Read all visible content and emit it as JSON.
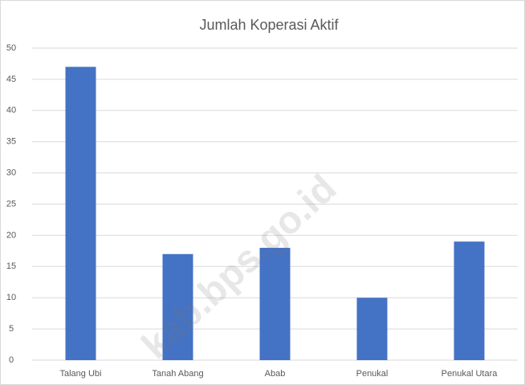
{
  "chart_data": {
    "type": "bar",
    "title": "Jumlah Koperasi Aktif",
    "categories": [
      "Talang Ubi",
      "Tanah Abang",
      "Abab",
      "Penukal",
      "Penukal Utara"
    ],
    "values": [
      47,
      17,
      18,
      10,
      19
    ],
    "color": "#4472c4",
    "ylim": [
      0,
      50
    ],
    "yticks": [
      0,
      5,
      10,
      15,
      20,
      25,
      30,
      35,
      40,
      45,
      50
    ],
    "grid": true,
    "watermark": "kab.bps.go.id"
  }
}
